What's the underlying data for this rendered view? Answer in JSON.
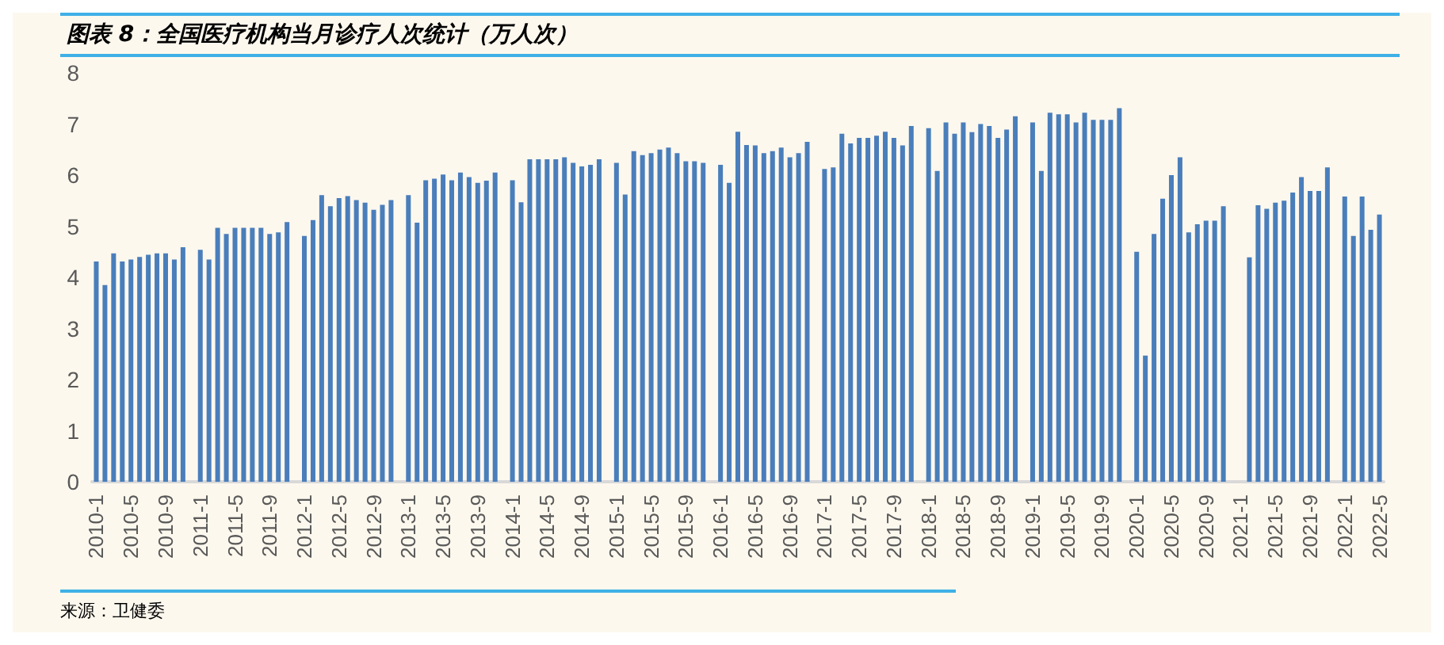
{
  "chart_data": {
    "type": "bar",
    "title": "图表 8：全国医疗机构当月诊疗人次统计（万人次）",
    "annotations": [
      "来源：卫健委"
    ],
    "categories": [
      "2010-1",
      null,
      null,
      null,
      "2010-5",
      null,
      null,
      null,
      "2010-9",
      null,
      null,
      null,
      "2011-1",
      null,
      null,
      null,
      "2011-5",
      null,
      null,
      null,
      "2011-9",
      null,
      null,
      null,
      "2012-1",
      null,
      null,
      null,
      "2012-5",
      null,
      null,
      null,
      "2012-9",
      null,
      null,
      null,
      "2013-1",
      null,
      null,
      null,
      "2013-5",
      null,
      null,
      null,
      "2013-9",
      null,
      null,
      null,
      "2014-1",
      null,
      null,
      null,
      "2014-5",
      null,
      null,
      null,
      "2014-9",
      null,
      null,
      null,
      "2015-1",
      null,
      null,
      null,
      "2015-5",
      null,
      null,
      null,
      "2015-9",
      null,
      null,
      null,
      "2016-1",
      null,
      null,
      null,
      "2016-5",
      null,
      null,
      null,
      "2016-9",
      null,
      null,
      null,
      "2017-1",
      null,
      null,
      null,
      "2017-5",
      null,
      null,
      null,
      "2017-9",
      null,
      null,
      null,
      "2018-1",
      null,
      null,
      null,
      "2018-5",
      null,
      null,
      null,
      "2018-9",
      null,
      null,
      null,
      "2019-1",
      null,
      null,
      null,
      "2019-5",
      null,
      null,
      null,
      "2019-9",
      null,
      null,
      null,
      "2020-1",
      null,
      null,
      null,
      "2020-5",
      null,
      null,
      null,
      "2020-9",
      null,
      null,
      null,
      "2021-1",
      null,
      null,
      null,
      "2021-5",
      null,
      null,
      null,
      "2021-9",
      null,
      null,
      null,
      "2022-1",
      null,
      null,
      null,
      "2022-5"
    ],
    "values": [
      4.31,
      3.85,
      4.47,
      4.31,
      4.35,
      4.4,
      4.44,
      4.47,
      4.47,
      4.35,
      4.59,
      null,
      4.54,
      4.35,
      4.97,
      4.85,
      4.97,
      4.97,
      4.97,
      4.97,
      4.85,
      4.88,
      5.08,
      null,
      4.81,
      5.12,
      5.61,
      5.39,
      5.55,
      5.59,
      5.51,
      5.46,
      5.32,
      5.42,
      5.51,
      null,
      5.61,
      5.07,
      5.9,
      5.93,
      6.01,
      5.9,
      6.05,
      5.96,
      5.85,
      5.89,
      6.05,
      null,
      5.9,
      5.47,
      6.31,
      6.31,
      6.31,
      6.31,
      6.35,
      6.24,
      6.17,
      6.2,
      6.31,
      null,
      6.24,
      5.62,
      6.47,
      6.39,
      6.43,
      6.5,
      6.54,
      6.43,
      6.27,
      6.27,
      6.24,
      null,
      6.2,
      5.85,
      6.85,
      6.59,
      6.58,
      6.43,
      6.47,
      6.54,
      6.35,
      6.43,
      6.65,
      null,
      6.12,
      6.15,
      6.81,
      6.62,
      6.73,
      6.73,
      6.77,
      6.85,
      6.73,
      6.58,
      6.96,
      null,
      6.92,
      6.08,
      7.03,
      6.81,
      7.03,
      6.84,
      7.0,
      6.96,
      6.73,
      6.89,
      7.15,
      null,
      7.03,
      6.08,
      7.22,
      7.19,
      7.19,
      7.03,
      7.22,
      7.08,
      7.08,
      7.08,
      7.31,
      null,
      4.5,
      2.47,
      4.85,
      5.54,
      6.0,
      6.35,
      4.88,
      5.04,
      5.11,
      5.11,
      5.39,
      null,
      null,
      4.39,
      5.41,
      5.34,
      5.46,
      5.5,
      5.66,
      5.96,
      5.69,
      5.69,
      6.15,
      null,
      5.58,
      4.81,
      5.58,
      4.93,
      5.23
    ],
    "color": "#4a7ebb",
    "ylim": [
      0,
      8
    ],
    "yticks": [
      0,
      1,
      2,
      3,
      4,
      5,
      6,
      7,
      8
    ]
  }
}
